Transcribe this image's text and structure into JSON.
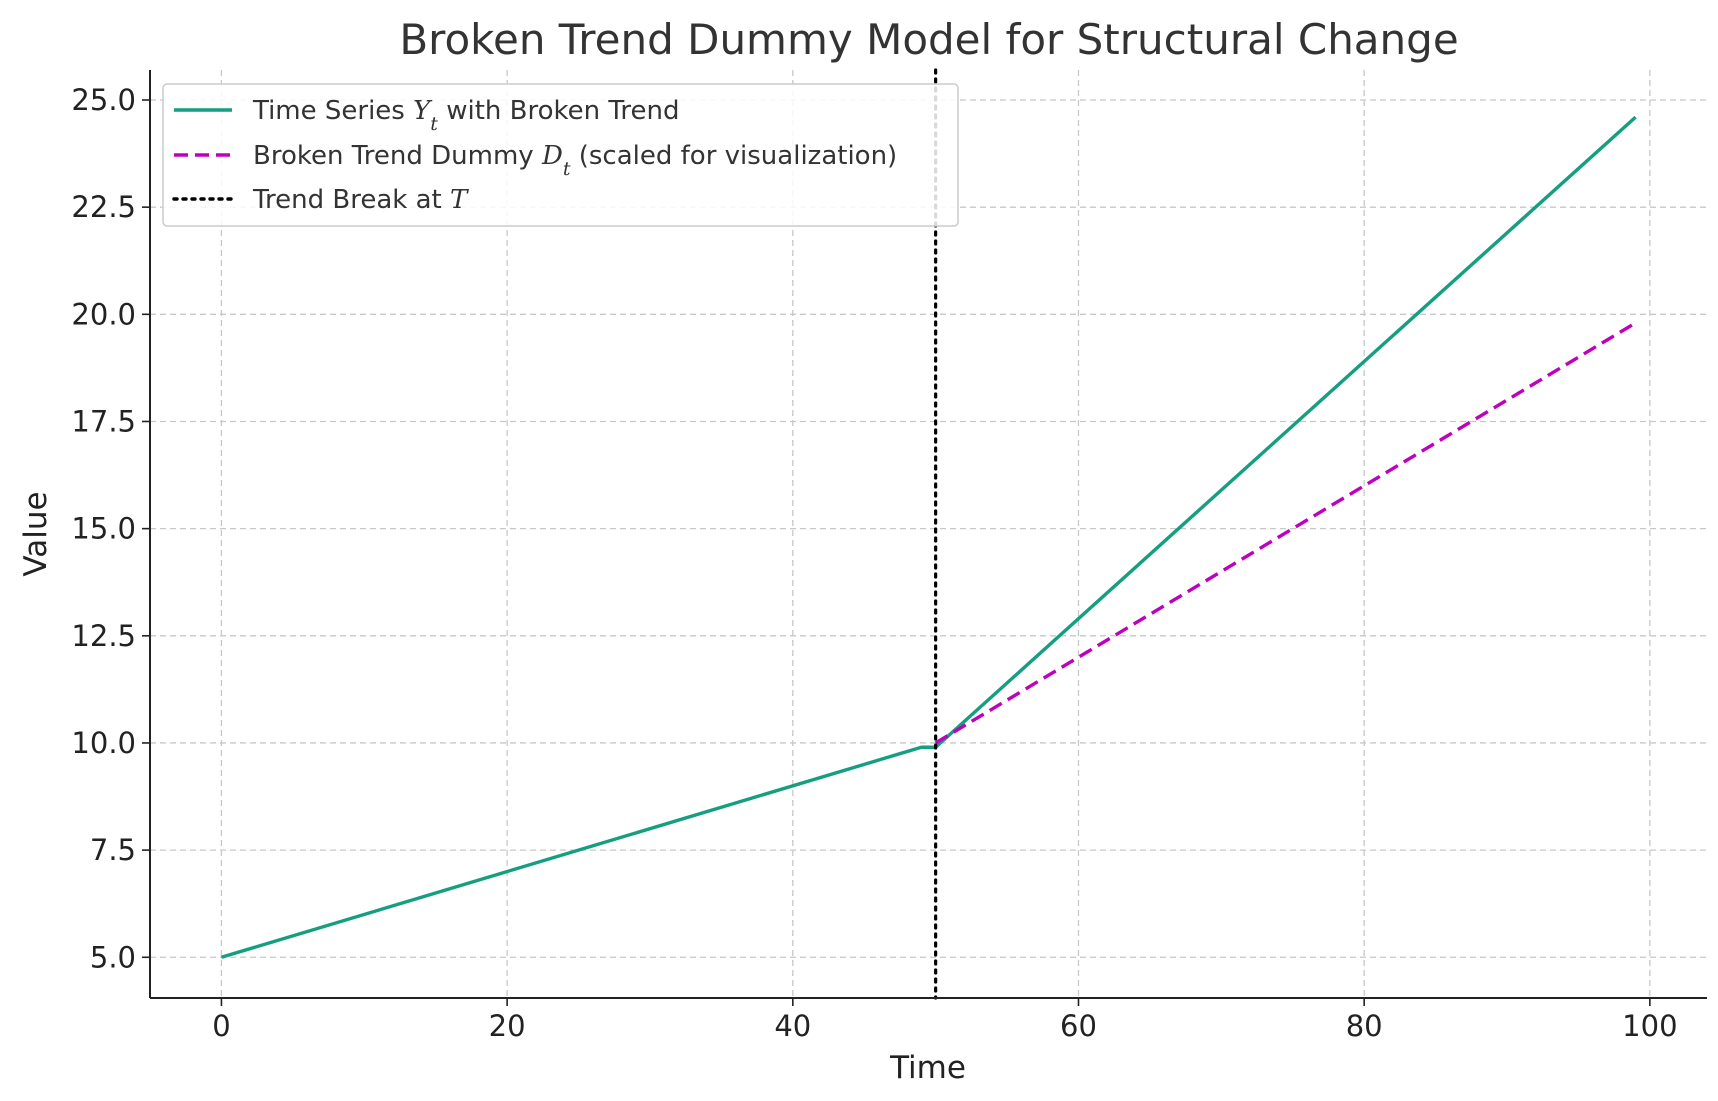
{
  "chart_data": {
    "type": "line",
    "title": "Broken Trend Dummy Model for Structural Change",
    "xlabel": "Time",
    "ylabel": "Value",
    "xlim": [
      -5,
      104
    ],
    "ylim": [
      4.05,
      25.7
    ],
    "xticks": [
      0,
      20,
      40,
      60,
      80,
      100
    ],
    "xtick_labels": [
      "0",
      "20",
      "40",
      "60",
      "80",
      "100"
    ],
    "yticks": [
      5.0,
      7.5,
      10.0,
      12.5,
      15.0,
      17.5,
      20.0,
      22.5,
      25.0
    ],
    "ytick_labels": [
      "5.0",
      "7.5",
      "10.0",
      "12.5",
      "15.0",
      "17.5",
      "20.0",
      "22.5",
      "25.0"
    ],
    "grid": true,
    "legend_position": "top-left",
    "series": [
      {
        "name": "Time Series Yt with Broken Trend",
        "legend_parts": [
          {
            "text": "Time Series ",
            "math": false
          },
          {
            "text": "Y",
            "math": true
          },
          {
            "text": "t",
            "math": true,
            "sub": true
          },
          {
            "text": " with Broken Trend",
            "math": false
          }
        ],
        "style": "solid",
        "color": "#159e7f",
        "x": [
          0,
          49,
          50,
          99
        ],
        "y": [
          5.0,
          9.9,
          9.9,
          24.6
        ]
      },
      {
        "name": "Broken Trend Dummy Dt (scaled for visualization)",
        "legend_parts": [
          {
            "text": "Broken Trend Dummy ",
            "math": false
          },
          {
            "text": "D",
            "math": true
          },
          {
            "text": "t",
            "math": true,
            "sub": true
          },
          {
            "text": " (scaled for visualization)",
            "math": false
          }
        ],
        "style": "dashed",
        "color": "#bf00bf",
        "x": [
          50,
          99
        ],
        "y": [
          10.0,
          19.8
        ]
      },
      {
        "name": "Trend Break at T",
        "legend_parts": [
          {
            "text": "Trend Break at ",
            "math": false
          },
          {
            "text": "T",
            "math": true
          }
        ],
        "style": "dotted",
        "color": "#000000",
        "vline_x": 50
      }
    ]
  }
}
